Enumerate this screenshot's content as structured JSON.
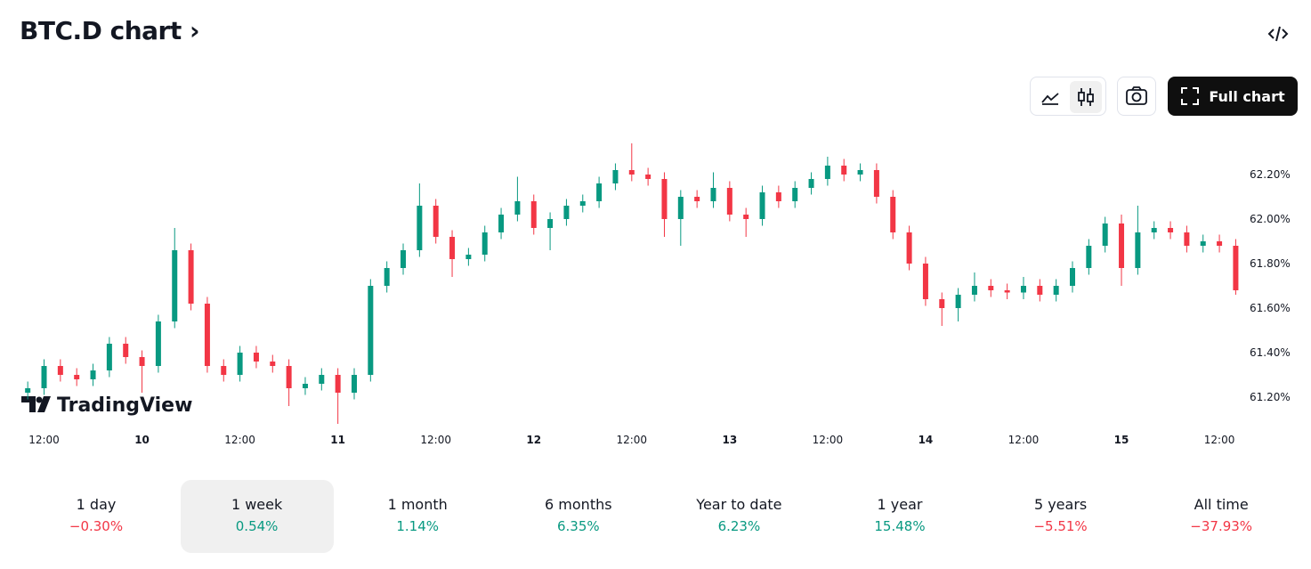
{
  "header": {
    "title": "BTC.D chart",
    "button": "Full chart"
  },
  "watermark": "TradingView",
  "chart_data": {
    "type": "candlestick",
    "x": [
      10,
      12,
      14,
      16,
      18,
      20,
      22,
      24,
      26,
      28,
      30,
      32,
      34,
      36,
      38,
      40,
      42,
      44,
      46,
      48,
      50,
      52,
      54,
      56,
      58,
      60,
      62,
      64,
      66,
      68,
      70,
      72,
      74,
      76,
      78,
      80,
      82,
      84,
      86,
      88,
      90,
      92,
      94,
      96,
      98,
      100,
      102,
      104,
      106,
      108,
      110,
      112,
      114,
      116,
      118,
      120,
      122,
      124,
      126,
      128,
      130,
      132,
      134,
      136,
      138,
      140,
      142,
      144,
      146,
      148,
      150,
      152,
      154,
      156,
      158
    ],
    "open": [
      61.22,
      61.24,
      61.34,
      61.3,
      61.28,
      61.32,
      61.44,
      61.38,
      61.34,
      61.54,
      61.86,
      61.62,
      61.34,
      61.3,
      61.4,
      61.36,
      61.34,
      61.24,
      61.26,
      61.3,
      61.22,
      61.3,
      61.7,
      61.78,
      61.86,
      62.06,
      61.92,
      61.82,
      61.84,
      61.94,
      62.02,
      62.08,
      61.96,
      62.0,
      62.06,
      62.08,
      62.16,
      62.22,
      62.2,
      62.18,
      62.0,
      62.1,
      62.08,
      62.14,
      62.02,
      62.0,
      62.12,
      62.08,
      62.14,
      62.18,
      62.24,
      62.2,
      62.22,
      62.1,
      61.94,
      61.8,
      61.64,
      61.6,
      61.66,
      61.7,
      61.68,
      61.67,
      61.7,
      61.66,
      61.7,
      61.78,
      61.88,
      61.98,
      61.78,
      61.94,
      61.96,
      61.94,
      61.88,
      61.9,
      61.88
    ],
    "high": [
      61.27,
      61.37,
      61.37,
      61.33,
      61.35,
      61.47,
      61.47,
      61.41,
      61.57,
      61.96,
      61.89,
      61.65,
      61.37,
      61.43,
      61.43,
      61.39,
      61.37,
      61.29,
      61.33,
      61.33,
      61.33,
      61.73,
      61.81,
      61.89,
      62.16,
      62.09,
      61.95,
      61.87,
      61.97,
      62.05,
      62.19,
      62.11,
      62.03,
      62.09,
      62.11,
      62.19,
      62.25,
      62.34,
      62.23,
      62.21,
      62.13,
      62.13,
      62.21,
      62.17,
      62.05,
      62.15,
      62.15,
      62.17,
      62.21,
      62.28,
      62.27,
      62.25,
      62.25,
      62.13,
      61.97,
      61.83,
      61.67,
      61.69,
      61.76,
      61.73,
      61.71,
      61.74,
      61.73,
      61.73,
      61.81,
      61.91,
      62.01,
      62.02,
      62.06,
      61.99,
      61.99,
      61.97,
      61.93,
      61.93,
      61.91
    ],
    "low": [
      61.19,
      61.21,
      61.27,
      61.25,
      61.25,
      61.29,
      61.35,
      61.22,
      61.31,
      61.51,
      61.59,
      61.31,
      61.27,
      61.27,
      61.33,
      61.31,
      61.16,
      61.21,
      61.23,
      61.08,
      61.19,
      61.27,
      61.67,
      61.75,
      61.83,
      61.89,
      61.74,
      61.79,
      61.81,
      61.91,
      61.99,
      61.93,
      61.86,
      61.97,
      62.03,
      62.05,
      62.13,
      62.17,
      62.15,
      61.92,
      61.88,
      62.05,
      62.05,
      61.99,
      61.92,
      61.97,
      62.05,
      62.05,
      62.11,
      62.15,
      62.17,
      62.17,
      62.07,
      61.91,
      61.77,
      61.61,
      61.52,
      61.54,
      61.63,
      61.65,
      61.64,
      61.64,
      61.63,
      61.63,
      61.67,
      61.75,
      61.85,
      61.7,
      61.75,
      61.91,
      61.91,
      61.85,
      61.85,
      61.85,
      61.66
    ],
    "close": [
      61.24,
      61.34,
      61.3,
      61.28,
      61.32,
      61.44,
      61.38,
      61.34,
      61.54,
      61.86,
      61.62,
      61.34,
      61.3,
      61.4,
      61.36,
      61.34,
      61.24,
      61.26,
      61.3,
      61.22,
      61.3,
      61.7,
      61.78,
      61.86,
      62.06,
      61.92,
      61.82,
      61.84,
      61.94,
      62.02,
      62.08,
      61.96,
      62.0,
      62.06,
      62.08,
      62.16,
      62.22,
      62.2,
      62.18,
      62.0,
      62.1,
      62.08,
      62.14,
      62.02,
      62.0,
      62.12,
      62.08,
      62.14,
      62.18,
      62.24,
      62.2,
      62.22,
      62.1,
      61.94,
      61.8,
      61.64,
      61.6,
      61.66,
      61.7,
      61.68,
      61.67,
      61.7,
      61.66,
      61.7,
      61.78,
      61.88,
      61.98,
      61.78,
      61.94,
      61.96,
      61.94,
      61.88,
      61.9,
      61.88,
      61.68
    ],
    "up_color": "#089981",
    "down_color": "#f23645",
    "xlim": [
      9,
      158.5
    ],
    "xticks": [
      {
        "value": 12,
        "label": "12:00"
      },
      {
        "value": 24,
        "label": "10"
      },
      {
        "value": 36,
        "label": "12:00"
      },
      {
        "value": 48,
        "label": "11"
      },
      {
        "value": 60,
        "label": "12:00"
      },
      {
        "value": 72,
        "label": "12"
      },
      {
        "value": 84,
        "label": "12:00"
      },
      {
        "value": 96,
        "label": "13"
      },
      {
        "value": 108,
        "label": "12:00"
      },
      {
        "value": 120,
        "label": "14"
      },
      {
        "value": 132,
        "label": "12:00"
      },
      {
        "value": 144,
        "label": "15"
      },
      {
        "value": 156,
        "label": "12:00"
      }
    ],
    "ylim": [
      61.084,
      62.364
    ],
    "yticks": [
      {
        "value": 61.2,
        "label": "61.20%"
      },
      {
        "value": 61.4,
        "label": "61.40%"
      },
      {
        "value": 61.6,
        "label": "61.60%"
      },
      {
        "value": 61.8,
        "label": "61.80%"
      },
      {
        "value": 62.0,
        "label": "62.00%"
      },
      {
        "value": 62.2,
        "label": "62.20%"
      }
    ]
  },
  "periods": [
    {
      "label": "1 day",
      "change": "−0.30%"
    },
    {
      "label": "1 week",
      "change": "0.54%"
    },
    {
      "label": "1 month",
      "change": "1.14%"
    },
    {
      "label": "6 months",
      "change": "6.35%"
    },
    {
      "label": "Year to date",
      "change": "6.23%"
    },
    {
      "label": "1 year",
      "change": "15.48%"
    },
    {
      "label": "5 years",
      "change": "−5.51%"
    },
    {
      "label": "All time",
      "change": "−37.93%"
    }
  ],
  "selected_period": 1
}
